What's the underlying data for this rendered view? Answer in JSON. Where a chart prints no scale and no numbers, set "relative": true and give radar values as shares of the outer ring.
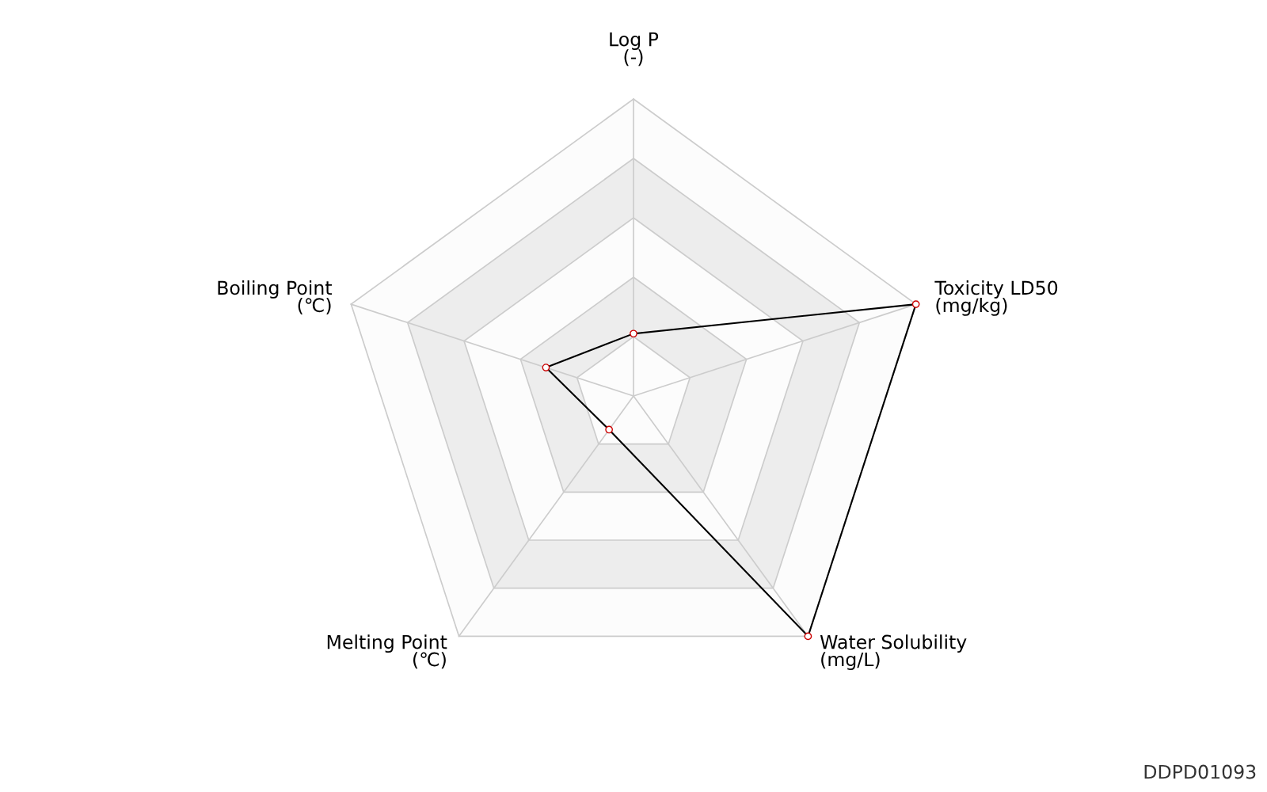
{
  "chart_data": {
    "type": "radar",
    "relative": true,
    "categories": [
      "Log P\n(-)",
      "Toxicity LD50\n(mg/kg)",
      "Water Solubility\n(mg/L)",
      "Melting Point\n(℃)",
      "Boiling Point\n(℃)"
    ],
    "series": [
      {
        "color": "#000000",
        "values": [
          0.21,
          1.0,
          1.0,
          0.14,
          0.31
        ]
      }
    ],
    "grid": true,
    "marker": "circle",
    "annotations": [
      "DDPD01093"
    ]
  }
}
